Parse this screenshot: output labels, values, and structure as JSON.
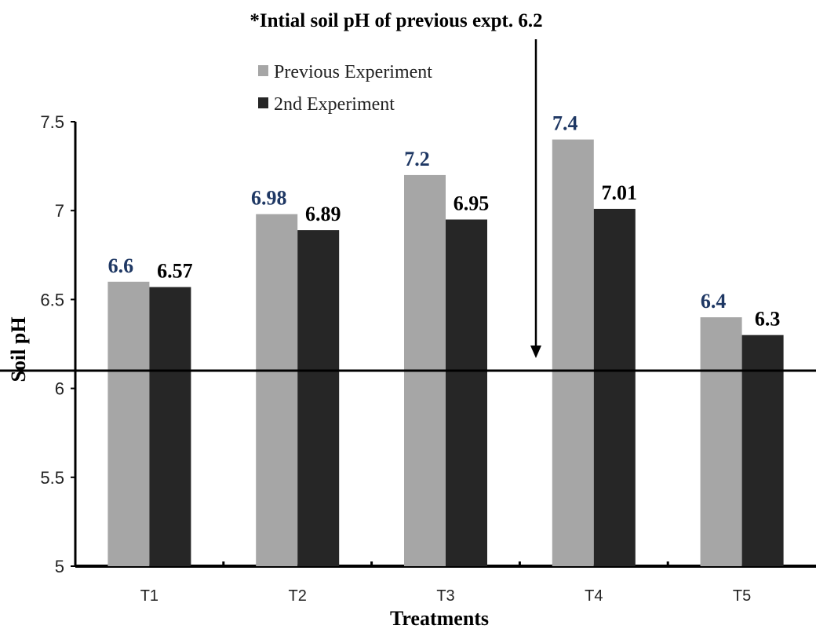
{
  "chart_data": {
    "type": "bar",
    "annotation": "*Intial soil pH of previous expt. 6.2",
    "xlabel": "Treatments",
    "ylabel": "Soil pH",
    "categories": [
      "T1",
      "T2",
      "T3",
      "T4",
      "T5"
    ],
    "ylim": [
      5,
      7.5
    ],
    "yticks": [
      "5",
      "5.5",
      "6",
      "6.5",
      "7",
      "7.5"
    ],
    "reference_line": 6.1,
    "legend_position": "top-center",
    "series": [
      {
        "name": "Previous Experiment",
        "color": "#a6a6a6",
        "label_color": "#1f3864",
        "values": [
          6.6,
          6.98,
          7.2,
          7.4,
          6.4
        ],
        "labels": [
          "6.6",
          "6.98",
          "7.2",
          "7.4",
          "6.4"
        ]
      },
      {
        "name": "2nd Experiment",
        "color": "#262626",
        "label_color": "#000000",
        "values": [
          6.57,
          6.89,
          6.95,
          7.01,
          6.3
        ],
        "labels": [
          "6.57",
          "6.89",
          "6.95",
          "7.01",
          "6.3"
        ]
      }
    ]
  }
}
